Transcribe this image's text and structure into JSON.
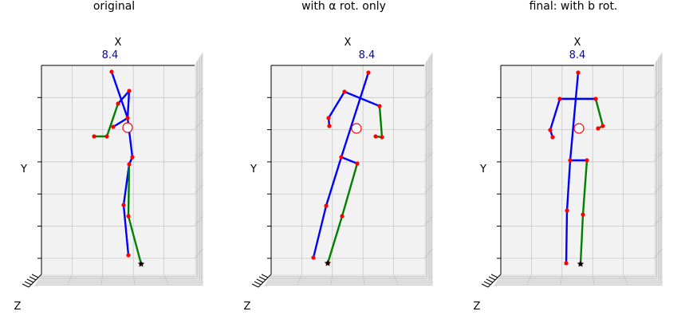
{
  "chart_data": [
    {
      "type": "3d-skeleton",
      "title": "original",
      "xlabel": "X",
      "ylabel": "Y",
      "zlabel": "Z",
      "x_tick_label": "8.4",
      "joints": [
        [
          140,
          90
        ],
        [
          162,
          114
        ],
        [
          148,
          130
        ],
        [
          160,
          148
        ],
        [
          142,
          159
        ],
        [
          134,
          171
        ],
        [
          118,
          171
        ],
        [
          166,
          197
        ],
        [
          162,
          206
        ],
        [
          155,
          257
        ],
        [
          161,
          271
        ],
        [
          161,
          320
        ],
        [
          177,
          331
        ]
      ],
      "bones_blue": [
        [
          0,
          3
        ],
        [
          3,
          4
        ],
        [
          1,
          2
        ],
        [
          1,
          3
        ],
        [
          3,
          7
        ],
        [
          7,
          8
        ],
        [
          8,
          9
        ],
        [
          9,
          11
        ]
      ],
      "bones_green": [
        [
          2,
          5
        ],
        [
          5,
          6
        ],
        [
          8,
          10
        ],
        [
          10,
          12
        ]
      ],
      "root": [
        160,
        160
      ],
      "foot": [
        177,
        331
      ]
    },
    {
      "type": "3d-skeleton",
      "title": "with α rot. only",
      "xlabel": "X",
      "ylabel": "Y",
      "zlabel": "Z",
      "x_tick_label": "8.4",
      "joints": [
        [
          462,
          91
        ],
        [
          432,
          115
        ],
        [
          476,
          133
        ],
        [
          412,
          148
        ],
        [
          413,
          158
        ],
        [
          471,
          171
        ],
        [
          479,
          172
        ],
        [
          428,
          197
        ],
        [
          448,
          205
        ],
        [
          409,
          258
        ],
        [
          429,
          271
        ],
        [
          393,
          323
        ],
        [
          411,
          330
        ]
      ],
      "bones_blue": [
        [
          0,
          7
        ],
        [
          1,
          2
        ],
        [
          1,
          3
        ],
        [
          3,
          4
        ],
        [
          7,
          8
        ],
        [
          7,
          9
        ],
        [
          9,
          11
        ]
      ],
      "bones_green": [
        [
          2,
          6
        ],
        [
          6,
          5
        ],
        [
          8,
          10
        ],
        [
          10,
          12
        ]
      ],
      "root": [
        447,
        161
      ],
      "foot": [
        411,
        330
      ]
    },
    {
      "type": "3d-skeleton",
      "title": "final: with b rot.",
      "xlabel": "X",
      "ylabel": "Y",
      "zlabel": "Z",
      "x_tick_label": "8.4",
      "joints": [
        [
          725,
          91
        ],
        [
          702,
          124
        ],
        [
          747,
          124
        ],
        [
          690,
          163
        ],
        [
          693,
          172
        ],
        [
          756,
          158
        ],
        [
          750,
          161
        ],
        [
          715,
          201
        ],
        [
          736,
          201
        ],
        [
          711,
          264
        ],
        [
          731,
          269
        ],
        [
          710,
          330
        ],
        [
          728,
          331
        ]
      ],
      "bones_blue": [
        [
          0,
          7
        ],
        [
          1,
          2
        ],
        [
          1,
          3
        ],
        [
          3,
          4
        ],
        [
          7,
          8
        ],
        [
          7,
          9
        ],
        [
          9,
          11
        ]
      ],
      "bones_green": [
        [
          2,
          5
        ],
        [
          5,
          6
        ],
        [
          8,
          10
        ],
        [
          10,
          12
        ]
      ],
      "root": [
        726,
        161
      ],
      "foot": [
        728,
        331
      ]
    }
  ]
}
